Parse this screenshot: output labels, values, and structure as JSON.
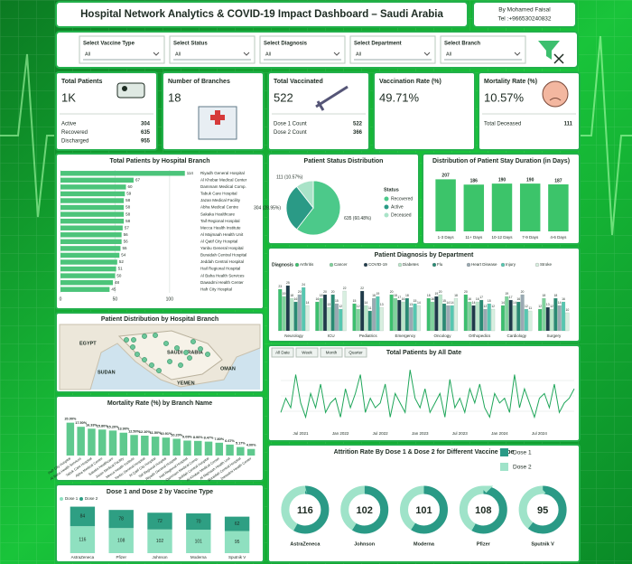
{
  "header": {
    "title": "Hospital Network Analytics & COVID-19 Impact Dashboard – Saudi Arabia",
    "author": "By Mohamed Faisal",
    "phone": "Tel :+966530240832"
  },
  "filters": [
    {
      "label": "Select Vaccine Type",
      "value": "All"
    },
    {
      "label": "Select Status",
      "value": "All"
    },
    {
      "label": "Select Diagnosis",
      "value": "All"
    },
    {
      "label": "Select Department",
      "value": "All"
    },
    {
      "label": "Select Branch",
      "value": "All"
    }
  ],
  "kpis": [
    {
      "title": "Total Patients",
      "value": "1K",
      "details": [
        {
          "label": "Active",
          "value": 304
        },
        {
          "label": "Recovered",
          "value": 635
        },
        {
          "label": "Discharged",
          "value": 955
        }
      ]
    },
    {
      "title": "Number of Branches",
      "value": 18
    },
    {
      "title": "Total Vaccinated",
      "value": 522,
      "details": [
        {
          "label": "Dose 1 Count",
          "value": 522
        },
        {
          "label": "Dose 2 Count",
          "value": 366
        }
      ]
    },
    {
      "title": "Vaccination Rate (%)",
      "value": "49.71%"
    },
    {
      "title": "Mortality Rate (%)",
      "value": "10.57%",
      "details": [
        {
          "label": "Total Deceased",
          "value": 111
        }
      ]
    }
  ],
  "map": {
    "title": "Patient Distribution by Hospital Branch",
    "labels": [
      "EGYPT",
      "SAUDI ARABIA",
      "SUDAN",
      "YEMEN",
      "OMAN"
    ]
  },
  "chart_data": [
    {
      "type": "hbar",
      "title": "Total Patients by Hospital Branch",
      "color": "#4cc47a",
      "categories": [
        "Riyadh General Hospital",
        "Al Khobar Medical Center",
        "Dammam Medical Comp.",
        "Tabuk Care Hospital",
        "Jazan Medical Facility",
        "Abha Medical Centre",
        "Sakaka Healthcare",
        "Taif Regional Hospital",
        "Mecca Health Institute",
        "Al Majmaah Health Unit",
        "Al Qatif City Hospital",
        "Yanbu General Hospital",
        "Buraidah Central Hospital",
        "Jeddah Central Hospital",
        "Hail Regional Hospital",
        "Al Baha Health Services",
        "Dawadmi Health Center",
        "Hafr City Hospital"
      ],
      "values": [
        114,
        67,
        60,
        59,
        58,
        58,
        58,
        58,
        57,
        56,
        56,
        55,
        54,
        52,
        51,
        50,
        48,
        45
      ],
      "xlim": [
        0,
        120
      ],
      "xticks": [
        0,
        50,
        100
      ]
    },
    {
      "type": "pie",
      "title": "Patient Status Distribution",
      "legend_title": "Status",
      "categories": [
        "Recovered",
        "Active",
        "Deceased"
      ],
      "values": [
        635,
        304,
        111
      ],
      "value_labels": [
        "635 (60.48%)",
        "304 (28.95%)",
        "111 (10.57%)"
      ],
      "colors": [
        "#4cc98a",
        "#2a9a86",
        "#a9e3c8"
      ]
    },
    {
      "type": "bar",
      "title": "Distribution of Patient Stay Duration (in Days)",
      "color": "#3cc46a",
      "categories": [
        "1-3 Days",
        "11+ Days",
        "10-12 Days",
        "7-9 Days",
        "4-6 Days"
      ],
      "values": [
        207,
        186,
        190,
        190,
        187
      ],
      "ylim": [
        0,
        230
      ]
    },
    {
      "type": "grouped_bar",
      "title": "Patient Diagnosis by Department",
      "legend_title": "Diagnosis",
      "categories": [
        "Neurology",
        "ICU",
        "Pediatrics",
        "Emergency",
        "Oncology",
        "Orthopedics",
        "Cardiology",
        "Surgery"
      ],
      "series": [
        {
          "name": "Arthritis",
          "color": "#3cbf6e",
          "values": [
            23,
            16,
            15,
            20,
            18,
            20,
            14,
            12
          ]
        },
        {
          "name": "Cancer",
          "color": "#7fd39c",
          "values": [
            19,
            18,
            12,
            18,
            16,
            16,
            19,
            18
          ]
        },
        {
          "name": "COVID-19",
          "color": "#1f3a4a",
          "values": [
            25,
            20,
            22,
            17,
            19,
            14,
            17,
            13
          ]
        },
        {
          "name": "Diabetes",
          "color": "#b9e6c9",
          "values": [
            18,
            13,
            14,
            16,
            20,
            16,
            14,
            12
          ]
        },
        {
          "name": "Flu",
          "color": "#2a8a74",
          "values": [
            16,
            20,
            11,
            18,
            15,
            17,
            16,
            18
          ]
        },
        {
          "name": "Heart Disease",
          "color": "#9aa9b3",
          "values": [
            20,
            15,
            18,
            13,
            14,
            12,
            20,
            14
          ]
        },
        {
          "name": "Injury",
          "color": "#56c7b1",
          "values": [
            24,
            12,
            19,
            15,
            14,
            15,
            12,
            16
          ]
        },
        {
          "name": "Stroke",
          "color": "#d8efe0",
          "values": [
            14,
            22,
            13,
            14,
            18,
            12,
            11,
            10
          ]
        }
      ],
      "ylim": [
        0,
        30
      ]
    },
    {
      "type": "line",
      "title": "Total Patients by All Date",
      "color": "#1fa65a",
      "buttons": [
        "All Date",
        "Week",
        "Month",
        "Quarter"
      ],
      "categories": [
        null,
        null,
        null,
        null,
        "Jul 2021",
        null,
        null,
        null,
        null,
        null,
        null,
        null,
        "Jan 2022",
        null,
        null,
        null,
        null,
        null,
        null,
        null,
        "Jul 2022",
        null,
        null,
        null,
        null,
        null,
        null,
        null,
        "Jan 2023",
        null,
        null,
        null,
        null,
        null,
        null,
        null,
        "Jul 2023",
        null,
        null,
        null,
        null,
        null,
        null,
        null,
        "Jan 2024",
        null,
        null,
        null,
        null,
        null,
        null,
        null,
        "Jul 2024",
        null,
        null,
        null,
        null,
        null,
        null,
        null
      ],
      "values": [
        3,
        6,
        4,
        11,
        5,
        2,
        7,
        4,
        9,
        3,
        5,
        6,
        2,
        8,
        4,
        7,
        11,
        3,
        6,
        4,
        5,
        9,
        2,
        7,
        5,
        3,
        12,
        6,
        4,
        8,
        3,
        5,
        7,
        2,
        10,
        4,
        6,
        3,
        8,
        5,
        9,
        4,
        2,
        7,
        5,
        6,
        3,
        11,
        4,
        8,
        5,
        2,
        6,
        7,
        4,
        9,
        3,
        5,
        6,
        8
      ],
      "ylim": [
        0,
        13
      ]
    },
    {
      "type": "bar",
      "title": "Mortality Rate (%) by Branch Name",
      "color": "#5fc98e",
      "categories": [
        "Hafr City Hospital",
        "Al Baha Health Services",
        "Tabuk Care Hospital",
        "Abha Medical Centre",
        "Sakaka Healthcare",
        "Jazan Medical Facility",
        "Mecca Health Institute",
        "Yanbu General Hospital",
        "Al Qatif City Hospital",
        "Taif Regional Hospital",
        "Riyadh General Hospital",
        "Hail Regional Hospital",
        "Dammam Medical Comp.",
        "Jeddah Central Hospital",
        "Al Khobar Medical Center",
        "Al Majmaah Health Unit",
        "Buraidah Central Hospital",
        "Dawadmi Health Center"
      ],
      "values": [
        20,
        17.5,
        16.33,
        15.8,
        15.2,
        13.9,
        12.5,
        12.1,
        11.5,
        10.91,
        10.2,
        9.09,
        8.9,
        8.47,
        7.8,
        6.67,
        5.17,
        4
      ],
      "value_labels": [
        "20.00%",
        "17.50%",
        "16.33%",
        "15.80%",
        "15.20%",
        "13.90%",
        "12.50%",
        "12.10%",
        "11.50%",
        "10.91%",
        "10.20%",
        "9.09%",
        "8.90%",
        "8.47%",
        "7.80%",
        "6.67%",
        "5.17%",
        "4.00%"
      ],
      "ylim": [
        0,
        22
      ]
    },
    {
      "type": "stacked_bar",
      "title": "Dose 1 and Dose 2 by Vaccine Type",
      "categories": [
        "AstraZeneca",
        "Pfizer",
        "Johnson",
        "Moderna",
        "Sputnik V"
      ],
      "series": [
        {
          "name": "Dose 1",
          "color": "#8fe0c0",
          "values": [
            116,
            108,
            102,
            101,
            95
          ]
        },
        {
          "name": "Dose 2",
          "color": "#2e9f83",
          "values": [
            84,
            78,
            72,
            70,
            62
          ]
        }
      ],
      "ylim": [
        0,
        210
      ]
    },
    {
      "type": "donut",
      "title": "Attrition Rate By Dose 1 & Dose 2 for Different Vaccine Type",
      "categories": [
        "AstraZeneca",
        "Johnson",
        "Moderna",
        "Pfizer",
        "Sputnik V"
      ],
      "series": [
        {
          "name": "Dose 1",
          "color": "#2a9a86",
          "values": [
            116,
            102,
            101,
            108,
            95
          ]
        },
        {
          "name": "Dose 2",
          "color": "#9fe3c9",
          "values": [
            84,
            72,
            70,
            78,
            62
          ]
        }
      ]
    }
  ]
}
